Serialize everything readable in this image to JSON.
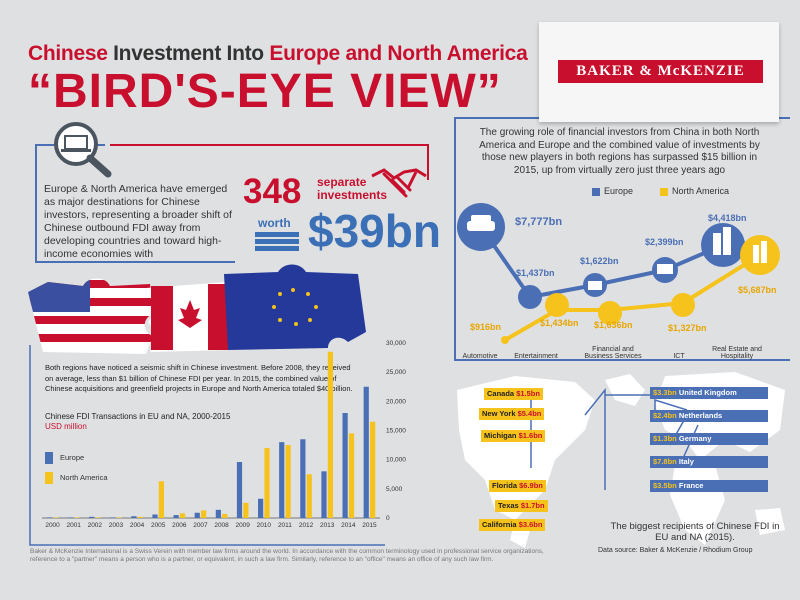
{
  "header": {
    "line1_part1": "Chinese",
    "line1_part2": "Investment Into",
    "line1_part3": "Europe and North America",
    "line2": "“BIRD'S-EYE VIEW”"
  },
  "logo": {
    "text": "BAKER & McKENZIE"
  },
  "intro": {
    "text": "Europe & North America have emerged as major destinations for Chinese investors, representing a broader shift of Chinese outbound FDI away from developing countries and toward high-income economies with",
    "count": "348",
    "count_label": "separate investments",
    "worth_label": "worth",
    "total": "$39bn"
  },
  "financial": {
    "text": "The growing role of financial investors from China in both North America and Europe and the combined value of investments by those new players in both regions has surpassed $15 billion in 2015, up from virtually zero just three years ago",
    "legend_europe": "Europe",
    "legend_na": "North America",
    "sectors": [
      {
        "name": "Automotive",
        "europe": "$7,777bn",
        "na": "$916bn"
      },
      {
        "name": "Entertainment",
        "europe": "$1,437bn",
        "na": "$1,434bn"
      },
      {
        "name": "Financial and Business Services",
        "europe": "$1,622bn",
        "na": "$1,636bn"
      },
      {
        "name": "ICT",
        "europe": "$2,399bn",
        "na": "$1,327bn"
      },
      {
        "name": "Real Estate and Hospitality",
        "europe": "$4,418bn",
        "na": "$5,687bn"
      }
    ]
  },
  "shift": {
    "text": "Both regions have noticed a seismic shift in Chinese investment. Before 2008, they received on average, less than $1 billion of Chinese FDI per year. In 2015, the combined value of Chinese acquisitions and greenfield projects in Europe and North America totaled $40 billion."
  },
  "chart_data": {
    "type": "bar",
    "title": "Chinese FDI Transactions in EU and NA, 2000-2015",
    "unit": "USD million",
    "categories": [
      "2000",
      "2001",
      "2002",
      "2003",
      "2004",
      "2005",
      "2006",
      "2007",
      "2008",
      "2009",
      "2010",
      "2011",
      "2012",
      "2013",
      "2014",
      "2015"
    ],
    "series": [
      {
        "name": "Europe",
        "color": "#4a6fb5",
        "values": [
          100,
          100,
          200,
          100,
          300,
          600,
          500,
          900,
          1400,
          9600,
          3300,
          13000,
          13500,
          8000,
          18000,
          22500
        ]
      },
      {
        "name": "North America",
        "color": "#f6c21c",
        "values": [
          100,
          100,
          100,
          100,
          200,
          6300,
          800,
          1300,
          700,
          2600,
          12000,
          12500,
          7500,
          28500,
          14500,
          16500
        ]
      }
    ],
    "ylim": [
      0,
      30000
    ],
    "yticks": [
      "0",
      "5,000",
      "10,000",
      "15,000",
      "20,000",
      "25,000",
      "30,000"
    ],
    "legend": "left"
  },
  "map": {
    "na_labels": [
      {
        "place": "Canada",
        "value": "$1.5bn"
      },
      {
        "place": "New York",
        "value": "$5.4bn"
      },
      {
        "place": "Michigan",
        "value": "$1.6bn"
      },
      {
        "place": "Florida",
        "value": "$6.9bn"
      },
      {
        "place": "Texas",
        "value": "$1.7bn"
      },
      {
        "place": "California",
        "value": "$3.6bn"
      }
    ],
    "eu_labels": [
      {
        "value": "$3.3bn",
        "place": "United Kingdom"
      },
      {
        "value": "$2.4bn",
        "place": "Netherlands"
      },
      {
        "value": "$1.3bn",
        "place": "Germany"
      },
      {
        "value": "$7.8bn",
        "place": "Italy"
      },
      {
        "value": "$3.5bn",
        "place": "France"
      }
    ],
    "caption": "The biggest recipients of Chinese FDI in EU and NA (2015).",
    "source": "Data source: Baker & McKenzie / Rhodium Group"
  },
  "footer": {
    "text": "Baker & McKenzie International is a Swiss Verein with member law firms around the world. In accordance with the common terminology used in professional service organizations, reference to a \"partner\" means a person who is a partner, or equivalent, in such a law firm. Similarly, reference to an \"office\" means an office of any such law firm."
  },
  "colors": {
    "red": "#c8102e",
    "blue": "#4a6fb5",
    "yellow": "#f6c21c"
  }
}
